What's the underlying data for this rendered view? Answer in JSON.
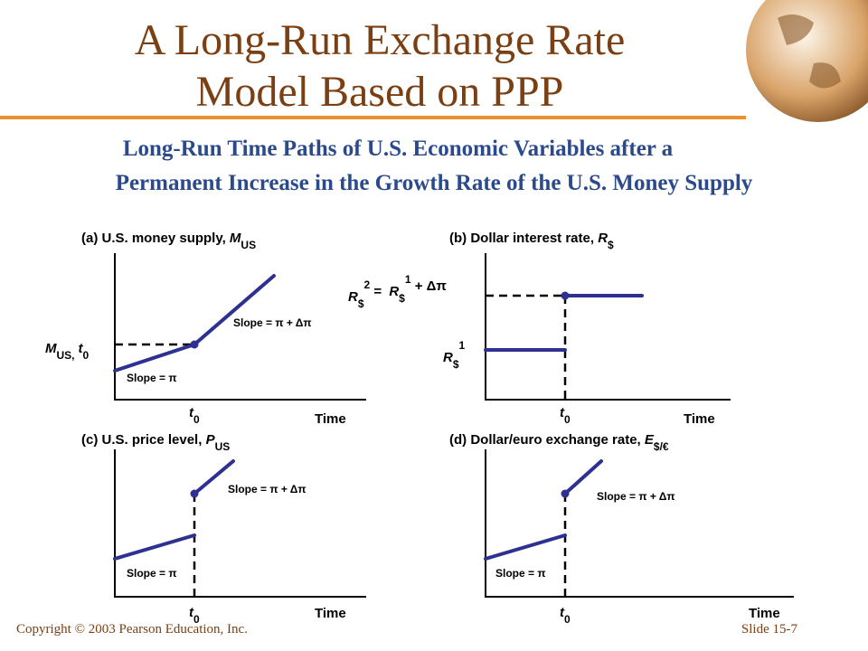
{
  "header": {
    "title_line1": "A Long-Run Exchange Rate",
    "title_line2": "Model Based on PPP"
  },
  "subtitle": {
    "line1": "Long-Run Time Paths of U.S. Economic Variables after a",
    "line2": "Permanent Increase in the Growth Rate of the U.S. Money Supply"
  },
  "panels": [
    {
      "title": [
        "(a) U.S. money supply, ",
        "M",
        "US"
      ],
      "x_label": "Time",
      "t0": [
        "t",
        "0"
      ],
      "slope_before": "Slope = π",
      "slope_after": "Slope = π + Δπ",
      "level_label": [
        "M",
        "US,",
        "t",
        "0"
      ]
    },
    {
      "title": [
        "(b) Dollar interest rate, ",
        "R",
        "$"
      ],
      "x_label": "Time",
      "t0": [
        "t",
        "0"
      ],
      "upper_label": [
        "R",
        "$",
        "2",
        " = ",
        "R",
        "$",
        "1",
        " + Δπ"
      ],
      "lower_label": [
        "R",
        "$",
        "1"
      ]
    },
    {
      "title": [
        "(c) U.S. price level, ",
        "P",
        "US"
      ],
      "x_label": "Time",
      "t0": [
        "t",
        "0"
      ],
      "slope_before": "Slope = π",
      "slope_after": "Slope = π + Δπ"
    },
    {
      "title": [
        "(d) Dollar/euro exchange rate, ",
        "E",
        "$/€"
      ],
      "x_label": "Time",
      "t0": [
        "t",
        "0"
      ],
      "slope_before": "Slope = π",
      "slope_after": "Slope = π + Δπ"
    }
  ],
  "footer": {
    "copyright": "Copyright © 2003 Pearson Education, Inc.",
    "slide": "Slide 15-7"
  }
}
